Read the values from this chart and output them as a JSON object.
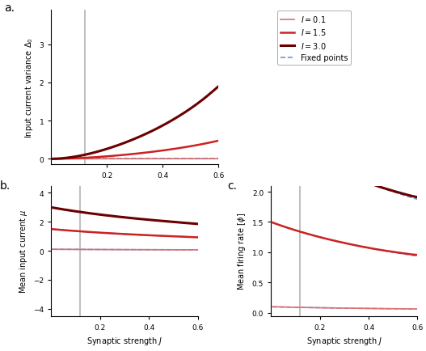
{
  "I_values": [
    0.1,
    1.5,
    3.0
  ],
  "colors": [
    "#E07070",
    "#CC2222",
    "#6B0000"
  ],
  "fp_color": "#6699CC",
  "J_min": 0.0,
  "J_max": 0.6,
  "J_vline": 0.12,
  "xlabel": "Synaptic strength $J$",
  "panel_a_ylabel": "Input current variance $\\Delta_0$",
  "panel_b_ylabel": "Mean input current $\\mu$",
  "panel_c_ylabel": "Mean firing rate $[\\phi]$",
  "panel_a_ylim": [
    -0.15,
    3.9
  ],
  "panel_b_ylim": [
    -4.5,
    4.5
  ],
  "panel_c_ylim": [
    -0.05,
    2.1
  ],
  "panel_a_yticks": [
    0,
    1,
    2,
    3
  ],
  "panel_b_yticks": [
    -4,
    -2,
    0,
    2,
    4
  ],
  "panel_c_yticks": [
    0.0,
    0.5,
    1.0,
    1.5,
    2.0
  ],
  "xticks": [
    0.2,
    0.4,
    0.6
  ],
  "legend_labels": [
    "$I = 0.1$",
    "$I = 1.5$",
    "$I = 3.0$",
    "Fixed points"
  ],
  "panel_labels": [
    "a.",
    "b.",
    "c."
  ],
  "lw_vals": [
    1.2,
    1.8,
    2.2
  ],
  "fp_lw": 1.2
}
